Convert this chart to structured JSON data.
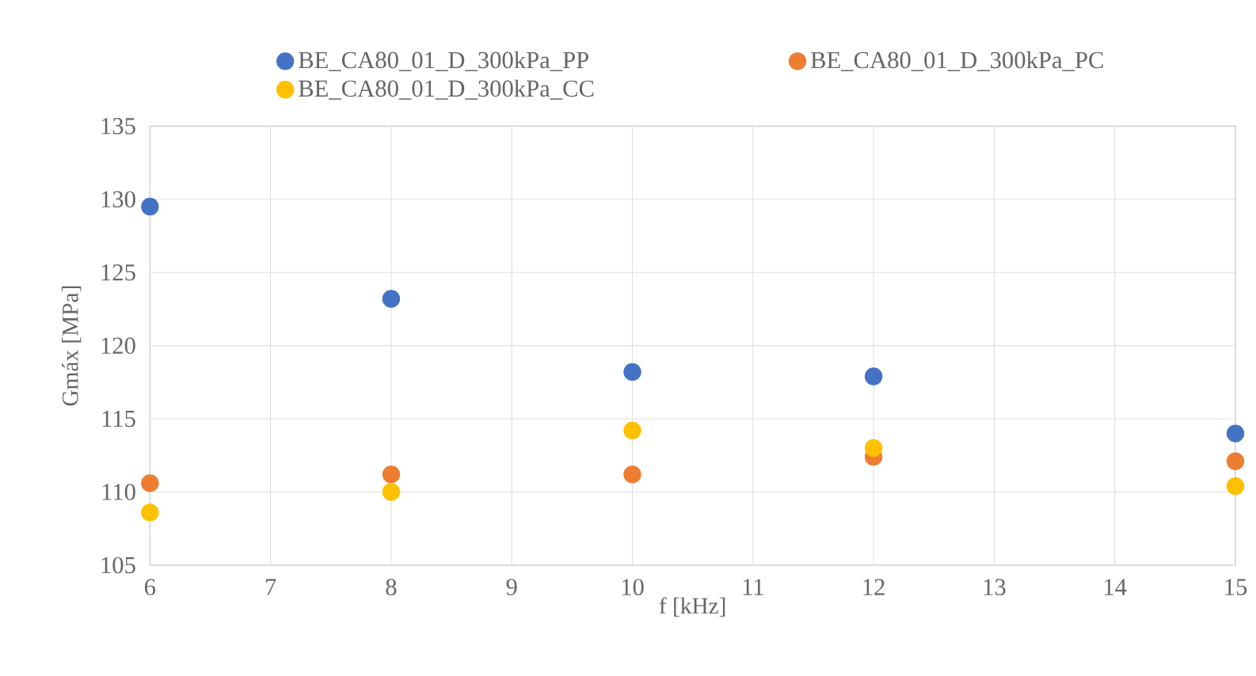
{
  "chart_data": {
    "type": "scatter",
    "xlabel": "f [kHz]",
    "ylabel": "Gmáx [MPa]",
    "x": [
      6,
      8,
      10,
      12,
      15
    ],
    "series": [
      {
        "name": "BE_CA80_01_D_300kPa_PP",
        "color": "#4472c4",
        "values": [
          129.5,
          123.2,
          118.2,
          117.9,
          114.0
        ]
      },
      {
        "name": "BE_CA80_01_D_300kPa_PC",
        "color": "#ed7d31",
        "values": [
          110.6,
          111.2,
          111.2,
          112.4,
          112.1
        ]
      },
      {
        "name": "BE_CA80_01_D_300kPa_CC",
        "color": "#ffc000",
        "values": [
          108.6,
          110.0,
          114.2,
          113.0,
          110.4
        ]
      }
    ],
    "xlim": [
      6,
      15
    ],
    "ylim": [
      105,
      135
    ],
    "xticks": [
      6,
      7,
      8,
      9,
      10,
      11,
      12,
      13,
      14,
      15
    ],
    "yticks": [
      105,
      110,
      115,
      120,
      125,
      130,
      135
    ],
    "grid": true,
    "legend": "top"
  }
}
